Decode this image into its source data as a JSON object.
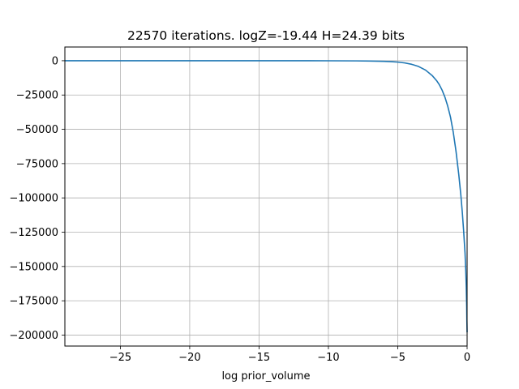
{
  "chart_data": {
    "type": "line",
    "title": "22570 iterations. logZ=-19.44 H=24.39 bits",
    "xlabel": "log prior_volume",
    "ylabel": "",
    "xlim": [
      -29,
      0
    ],
    "ylim": [
      -208000,
      10000
    ],
    "grid": true,
    "x_ticks": [
      -25,
      -20,
      -15,
      -10,
      -5,
      0
    ],
    "x_tick_labels": [
      "−25",
      "−20",
      "−15",
      "−10",
      "−5",
      "0"
    ],
    "y_ticks": [
      0,
      -25000,
      -50000,
      -75000,
      -100000,
      -125000,
      -150000,
      -175000,
      -200000
    ],
    "y_tick_labels": [
      "0",
      "−25000",
      "−50000",
      "−75000",
      "−100000",
      "−125000",
      "−150000",
      "−175000",
      "−200000"
    ],
    "series": [
      {
        "color": "#1f77b4",
        "x": [
          -29,
          -25,
          -20,
          -15,
          -12,
          -10,
          -8,
          -7,
          -6,
          -5.5,
          -5,
          -4.5,
          -4,
          -3.5,
          -3,
          -2.5,
          -2.2,
          -2.0,
          -1.8,
          -1.6,
          -1.4,
          -1.2,
          -1.0,
          -0.8,
          -0.6,
          -0.45,
          -0.35,
          -0.25,
          -0.15,
          -0.1,
          -0.06,
          -0.03,
          -0.015,
          0
        ],
        "y": [
          0,
          0,
          0,
          0,
          -10,
          -40,
          -120,
          -230,
          -450,
          -650,
          -1000,
          -1600,
          -2600,
          -4200,
          -6800,
          -11000,
          -14500,
          -17500,
          -21500,
          -26500,
          -33000,
          -41000,
          -52000,
          -66000,
          -83000,
          -98000,
          -110000,
          -124000,
          -140000,
          -152000,
          -165000,
          -179000,
          -190000,
          -198000
        ]
      }
    ]
  }
}
